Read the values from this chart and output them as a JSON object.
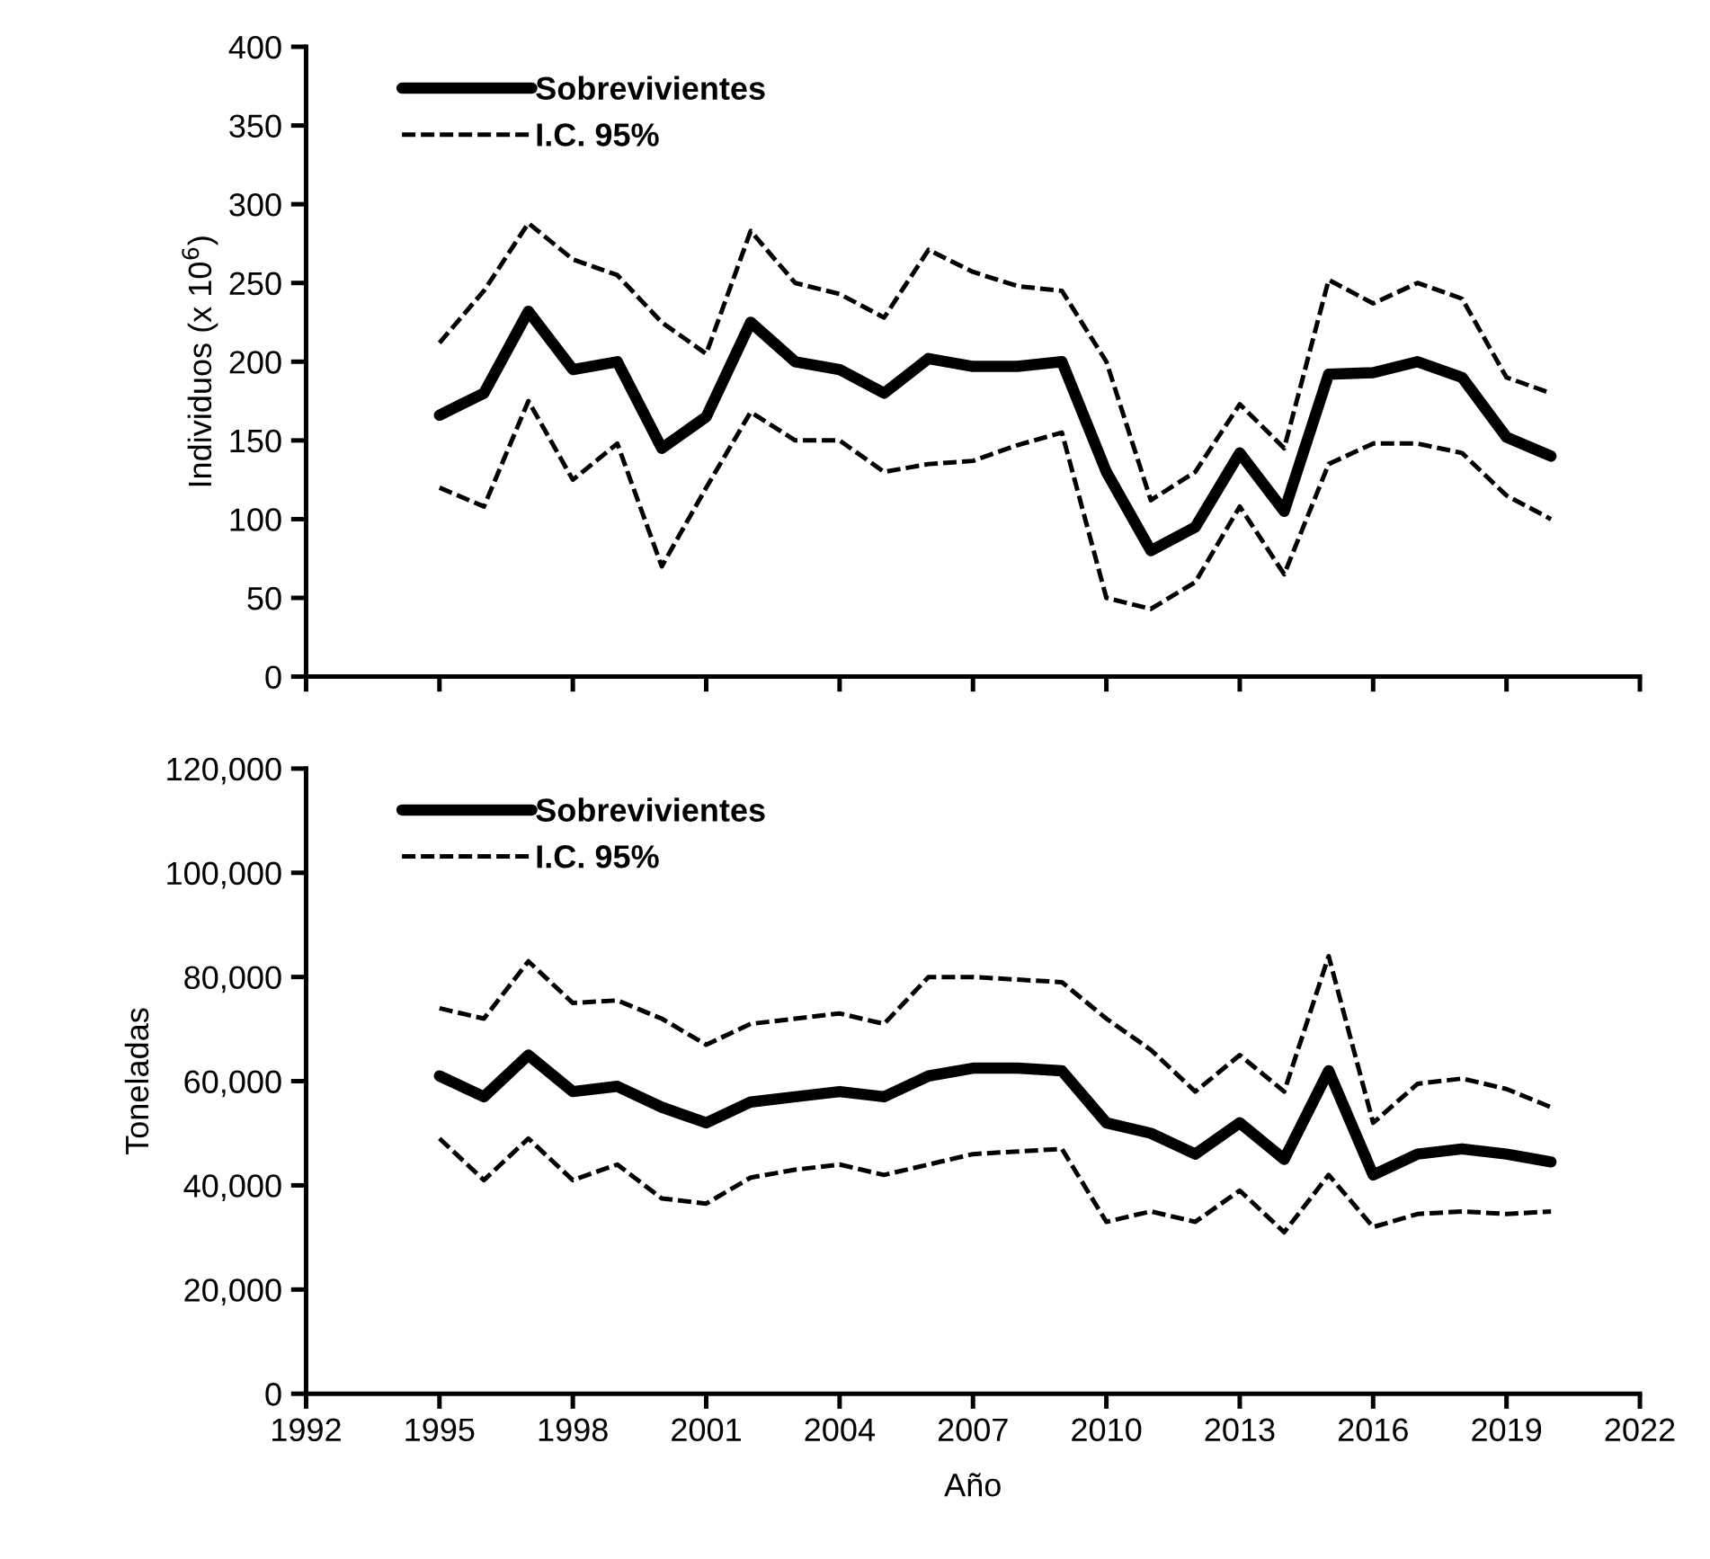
{
  "chart_data": [
    {
      "type": "line",
      "ylabel": "Individuos (x 10$^{6}$)",
      "x": [
        1995,
        1996,
        1997,
        1998,
        1999,
        2000,
        2001,
        2002,
        2003,
        2004,
        2005,
        2006,
        2007,
        2008,
        2009,
        2010,
        2011,
        2012,
        2013,
        2014,
        2015,
        2016,
        2017,
        2018,
        2019,
        2020
      ],
      "series": [
        {
          "name": "Sobrevivientes",
          "color": "#000000",
          "line_style": "solid",
          "values": [
            166,
            180,
            232,
            195,
            200,
            145,
            165,
            225,
            200,
            195,
            180,
            202,
            197,
            197,
            200,
            130,
            80,
            95,
            142,
            105,
            192,
            193,
            200,
            190,
            152,
            140
          ]
        },
        {
          "name": "I.C. 95%",
          "color": "#000000",
          "line_style": "dashed",
          "values": [
            212,
            245,
            288,
            265,
            255,
            225,
            205,
            283,
            250,
            243,
            228,
            271,
            257,
            248,
            245,
            200,
            112,
            130,
            173,
            145,
            252,
            237,
            250,
            240,
            190,
            180
          ]
        },
        {
          "color": "#000000",
          "line_style": "dashed",
          "values": [
            120,
            108,
            175,
            125,
            148,
            70,
            120,
            168,
            150,
            150,
            130,
            135,
            137,
            147,
            155,
            50,
            43,
            60,
            108,
            65,
            135,
            148,
            148,
            142,
            115,
            100
          ]
        }
      ],
      "xlim": [
        1992,
        2022
      ],
      "xticks": [
        1992,
        1995,
        1998,
        2001,
        2004,
        2007,
        2010,
        2013,
        2016,
        2019,
        2022
      ],
      "ylim": [
        0,
        400
      ],
      "yticks": [
        0,
        50,
        100,
        150,
        200,
        250,
        300,
        350,
        400
      ],
      "tick_labels": "y",
      "legend": "top left",
      "grid": false
    },
    {
      "type": "line",
      "ylabel": "Toneladas",
      "xlabel": "Año",
      "x": [
        1995,
        1996,
        1997,
        1998,
        1999,
        2000,
        2001,
        2002,
        2003,
        2004,
        2005,
        2006,
        2007,
        2008,
        2009,
        2010,
        2011,
        2012,
        2013,
        2014,
        2015,
        2016,
        2017,
        2018,
        2019,
        2020
      ],
      "series": [
        {
          "name": "Sobrevivientes",
          "color": "#000000",
          "line_style": "solid",
          "values": [
            61000,
            57000,
            65000,
            58000,
            59000,
            55000,
            52000,
            56000,
            57000,
            58000,
            57000,
            61000,
            62500,
            62500,
            62000,
            52000,
            50000,
            46000,
            52000,
            45000,
            62000,
            42000,
            46000,
            47000,
            46000,
            44500
          ]
        },
        {
          "name": "I.C. 95%",
          "color": "#000000",
          "line_style": "dashed",
          "values": [
            74000,
            72000,
            83000,
            75000,
            75500,
            72000,
            67000,
            71000,
            72000,
            73000,
            71000,
            80000,
            80000,
            79500,
            79000,
            72000,
            66000,
            58000,
            65000,
            58000,
            84000,
            52000,
            59500,
            60500,
            58500,
            55000
          ]
        },
        {
          "color": "#000000",
          "line_style": "dashed",
          "values": [
            49000,
            41000,
            49000,
            41000,
            44000,
            37500,
            36500,
            41500,
            43000,
            44000,
            42000,
            44000,
            46000,
            46500,
            47000,
            33000,
            35000,
            33000,
            39000,
            31000,
            42000,
            32000,
            34500,
            35000,
            34500,
            35000
          ]
        }
      ],
      "xlim": [
        1992,
        2022
      ],
      "xticks": [
        1992,
        1995,
        1998,
        2001,
        2004,
        2007,
        2010,
        2013,
        2016,
        2019,
        2022
      ],
      "ylim": [
        0,
        120000
      ],
      "yticks": [
        0,
        {
          "value": 20000,
          "label": "20,000"
        },
        {
          "value": 40000,
          "label": "40,000"
        },
        {
          "value": 60000,
          "label": "60,000"
        },
        {
          "value": 80000,
          "label": "80,000"
        },
        {
          "value": 100000,
          "label": "100,000"
        },
        {
          "value": 120000,
          "label": "120,000"
        }
      ],
      "legend": "top left",
      "grid": false
    }
  ]
}
